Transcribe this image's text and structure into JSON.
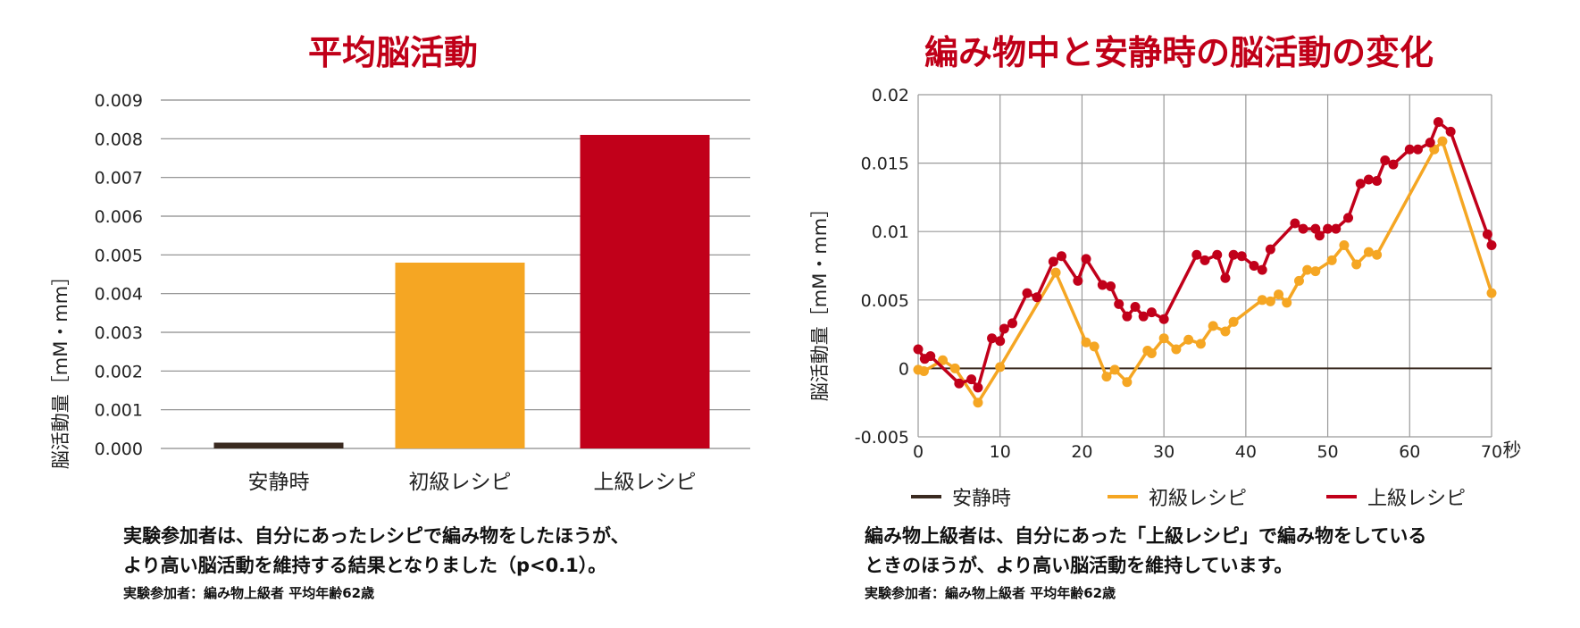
{
  "left_panel": {
    "title": "平均脳活動",
    "caption_lines": [
      "実験参加者は、自分にあったレシピで編み物をしたほうが、",
      "より高い脳活動を維持する結果となりました（p<0.1）。"
    ],
    "note": "実験参加者：編み物上級者 平均年齢62歳"
  },
  "right_panel": {
    "title": "編み物中と安静時の脳活動の変化",
    "caption_lines": [
      "編み物上級者は、自分にあった「上級レシピ」で編み物をしている",
      "ときのほうが、より高い脳活動を維持しています。"
    ],
    "note": "実験参加者：編み物上級者 平均年齢62歳"
  },
  "chart_data": [
    {
      "type": "bar",
      "title": "平均脳活動",
      "ylabel": "脳活動量［mM・mm］",
      "xlabel": "",
      "categories": [
        "安静時",
        "初級レシピ",
        "上級レシピ"
      ],
      "values": [
        0.00015,
        0.0048,
        0.0081
      ],
      "colors": [
        "#3a2a20",
        "#f5a623",
        "#c1001a"
      ],
      "ylim": [
        0,
        0.009
      ],
      "yticks": [
        "0.000",
        "0.001",
        "0.002",
        "0.003",
        "0.004",
        "0.005",
        "0.006",
        "0.007",
        "0.008",
        "0.009"
      ],
      "grid": "horizontal",
      "legend": "none"
    },
    {
      "type": "line",
      "title": "編み物中と安静時の脳活動の変化",
      "ylabel": "脳活動量［mM・mm］",
      "xlabel": "秒",
      "xlim": [
        0,
        70
      ],
      "ylim": [
        -0.005,
        0.02
      ],
      "xticks": [
        "0",
        "10",
        "20",
        "30",
        "40",
        "50",
        "60",
        "70"
      ],
      "yticks": [
        "-0.005",
        "0",
        "0.005",
        "0.01",
        "0.015",
        "0.02"
      ],
      "grid": "both",
      "legend": "bottom",
      "series": [
        {
          "name": "安静時",
          "color": "#3a2a20",
          "x": [
            0,
            70
          ],
          "y": [
            0,
            0
          ]
        },
        {
          "name": "初級レシピ",
          "color": "#f5a623",
          "x": [
            0,
            0.7,
            3,
            4.5,
            7.3,
            10,
            16.8,
            20.5,
            21.5,
            23,
            24,
            25.5,
            28,
            28.5,
            30,
            31.5,
            33,
            34.5,
            36,
            37.5,
            38.5,
            42,
            43,
            44,
            45,
            46.5,
            47.5,
            48.5,
            50.5,
            52,
            53.5,
            55,
            56,
            63,
            64,
            70
          ],
          "y": [
            -0.0001,
            -0.0002,
            0.0006,
            0.0,
            -0.0025,
            0.0001,
            0.007,
            0.0019,
            0.0016,
            -0.0006,
            -0.0001,
            -0.001,
            0.0013,
            0.0011,
            0.0022,
            0.0014,
            0.0021,
            0.0018,
            0.0031,
            0.0027,
            0.0034,
            0.005,
            0.0049,
            0.0054,
            0.0048,
            0.0064,
            0.0072,
            0.0071,
            0.0079,
            0.009,
            0.0076,
            0.0085,
            0.0083,
            0.016,
            0.0166,
            0.0055
          ]
        },
        {
          "name": "上級レシピ",
          "color": "#c1001a",
          "x": [
            0,
            0.8,
            1.5,
            5,
            6.5,
            7.3,
            9,
            10,
            10.5,
            11.5,
            13.3,
            14.5,
            16.5,
            17.5,
            19.5,
            20.5,
            22.5,
            23.5,
            24.5,
            25.5,
            26.5,
            27.5,
            28.5,
            30,
            34,
            35,
            36.5,
            37.5,
            38.5,
            39.5,
            41,
            42,
            43,
            46,
            47,
            48.5,
            49,
            50,
            51,
            52.5,
            54,
            55,
            56,
            57,
            58,
            60,
            61,
            62.5,
            63.5,
            65,
            69.5,
            70
          ],
          "y": [
            0.0014,
            0.0007,
            0.0009,
            -0.0011,
            -0.0008,
            -0.0014,
            0.0022,
            0.002,
            0.0029,
            0.0033,
            0.0055,
            0.0052,
            0.0078,
            0.0082,
            0.0064,
            0.008,
            0.0061,
            0.006,
            0.0047,
            0.0038,
            0.0045,
            0.0038,
            0.0041,
            0.0036,
            0.0083,
            0.0079,
            0.0083,
            0.0066,
            0.0083,
            0.0082,
            0.0075,
            0.0072,
            0.0087,
            0.0106,
            0.0102,
            0.0102,
            0.0097,
            0.0102,
            0.0102,
            0.011,
            0.0135,
            0.0138,
            0.0137,
            0.0152,
            0.0149,
            0.016,
            0.016,
            0.0165,
            0.018,
            0.0173,
            0.0098,
            0.009
          ]
        }
      ]
    }
  ]
}
